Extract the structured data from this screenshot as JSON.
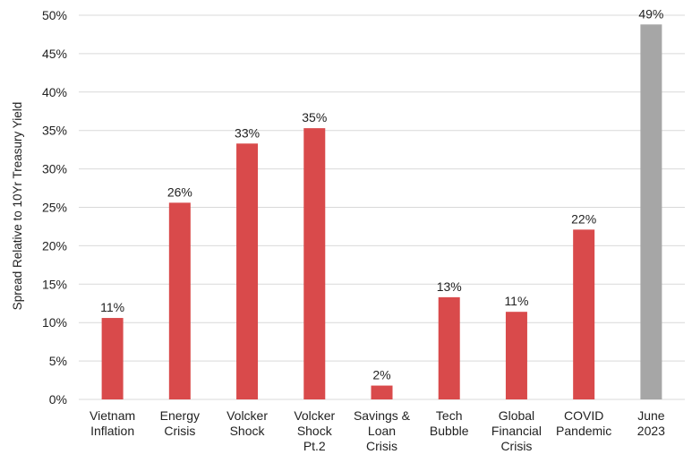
{
  "chart_data": {
    "type": "bar",
    "ylabel": "Spread Relative to 10Yr Treasury Yield",
    "xlabel": "",
    "ylim": [
      0,
      50
    ],
    "yticks": [
      "0%",
      "5%",
      "10%",
      "15%",
      "20%",
      "25%",
      "30%",
      "35%",
      "40%",
      "45%",
      "50%"
    ],
    "grid": true,
    "categories": [
      [
        "Vietnam",
        "Inflation"
      ],
      [
        "Energy",
        "Crisis"
      ],
      [
        "Volcker",
        "Shock"
      ],
      [
        "Volcker",
        "Shock",
        "Pt.2"
      ],
      [
        "Savings &",
        "Loan",
        "Crisis"
      ],
      [
        "Tech",
        "Bubble"
      ],
      [
        "Global",
        "Financial",
        "Crisis"
      ],
      [
        "COVID",
        "Pandemic"
      ],
      [
        "June",
        "2023"
      ]
    ],
    "values": [
      10.6,
      25.6,
      33.3,
      35.3,
      1.8,
      13.3,
      11.4,
      22.1,
      48.8
    ],
    "data_labels": [
      "11%",
      "26%",
      "33%",
      "35%",
      "2%",
      "13%",
      "11%",
      "22%",
      "49%"
    ],
    "colors": [
      "#d94a4b",
      "#d94a4b",
      "#d94a4b",
      "#d94a4b",
      "#d94a4b",
      "#d94a4b",
      "#d94a4b",
      "#d94a4b",
      "#a6a6a6"
    ]
  }
}
